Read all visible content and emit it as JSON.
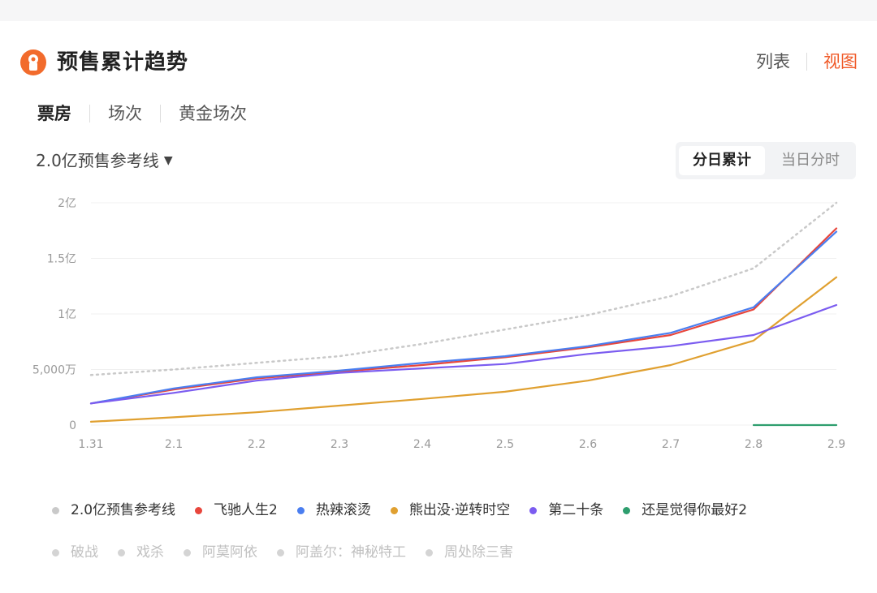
{
  "header": {
    "title": "预售累计趋势",
    "view_list": "列表",
    "view_chart": "视图"
  },
  "metric_tabs": [
    "票房",
    "场次",
    "黄金场次"
  ],
  "reference_select": {
    "label": "2.0亿预售参考线"
  },
  "segment": {
    "daily_cumulative": "分日累计",
    "intraday": "当日分时"
  },
  "colors": {
    "accent": "#f05a28",
    "inactive_legend": "#c0c0c0"
  },
  "chart_data": {
    "type": "line",
    "title": "",
    "xlabel": "",
    "ylabel": "",
    "x": [
      "1.31",
      "2.1",
      "2.2",
      "2.3",
      "2.4",
      "2.5",
      "2.6",
      "2.7",
      "2.8",
      "2.9"
    ],
    "y_ticks": [
      {
        "value": 0,
        "label": "0"
      },
      {
        "value": 5000,
        "label": "5,000万"
      },
      {
        "value": 10000,
        "label": "1亿"
      },
      {
        "value": 15000,
        "label": "1.5亿"
      },
      {
        "value": 20000,
        "label": "2亿"
      }
    ],
    "ylim": [
      0,
      20000
    ],
    "y_unit": "万",
    "series": [
      {
        "name": "2.0亿预售参考线",
        "color": "#c9c9c9",
        "style": "dotted",
        "values": [
          4500,
          5000,
          5600,
          6200,
          7300,
          8600,
          9900,
          11600,
          14100,
          20000
        ]
      },
      {
        "name": "飞驰人生2",
        "color": "#e8463c",
        "style": "solid",
        "values": [
          1950,
          3200,
          4200,
          4800,
          5400,
          6100,
          7000,
          8100,
          10400,
          17700
        ]
      },
      {
        "name": "热辣滚烫",
        "color": "#4a7ef0",
        "style": "solid",
        "values": [
          1950,
          3300,
          4300,
          4900,
          5600,
          6200,
          7100,
          8300,
          10600,
          17400
        ]
      },
      {
        "name": "熊出没·逆转时空",
        "color": "#e0a030",
        "style": "solid",
        "values": [
          300,
          700,
          1150,
          1750,
          2350,
          3000,
          4000,
          5400,
          7600,
          13300
        ]
      },
      {
        "name": "第二十条",
        "color": "#7b5cf0",
        "style": "solid",
        "values": [
          1950,
          2900,
          4000,
          4700,
          5100,
          5500,
          6400,
          7100,
          8100,
          10800
        ]
      },
      {
        "name": "还是觉得你最好2",
        "color": "#2e9e6e",
        "style": "solid",
        "x_from": 8,
        "values": [
          null,
          null,
          null,
          null,
          null,
          null,
          null,
          null,
          0,
          0
        ]
      }
    ],
    "legend": [
      {
        "name": "2.0亿预售参考线",
        "color": "#c9c9c9",
        "active": true
      },
      {
        "name": "飞驰人生2",
        "color": "#e8463c",
        "active": true
      },
      {
        "name": "热辣滚烫",
        "color": "#4a7ef0",
        "active": true
      },
      {
        "name": "熊出没·逆转时空",
        "color": "#e0a030",
        "active": true
      },
      {
        "name": "第二十条",
        "color": "#7b5cf0",
        "active": true
      },
      {
        "name": "还是觉得你最好2",
        "color": "#2e9e6e",
        "active": true
      },
      {
        "name": "破战",
        "color": "#d4d4d4",
        "active": false
      },
      {
        "name": "戏杀",
        "color": "#d4d4d4",
        "active": false
      },
      {
        "name": "阿莫阿依",
        "color": "#d4d4d4",
        "active": false
      },
      {
        "name": "阿盖尔：神秘特工",
        "color": "#d4d4d4",
        "active": false
      },
      {
        "name": "周处除三害",
        "color": "#d4d4d4",
        "active": false
      }
    ],
    "legend_position": "bottom",
    "grid": true
  }
}
